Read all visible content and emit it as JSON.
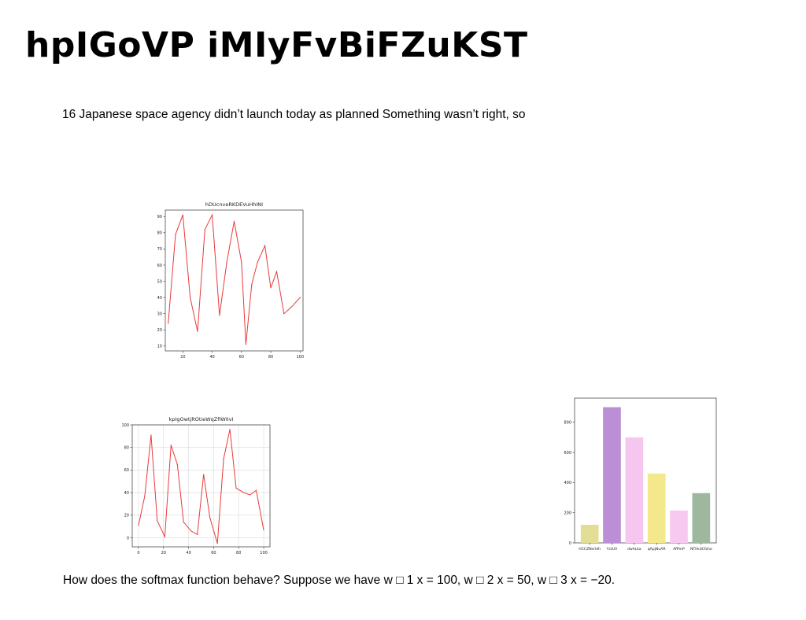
{
  "slide": {
    "title": "hpIGoVP iMIyFvBiFZuKST",
    "subtitle": "16 Japanese space agency didn’t launch today as planned Something wasn’t right, so",
    "bottom_text": "How does the softmax function behave? Suppose we have w □ 1 x = 100, w □ 2 x = 50, w □ 3 x = −20."
  },
  "chart_data": [
    {
      "type": "line",
      "title": "hDUcnveRKDEVuHhINI",
      "x": [
        10,
        15,
        20,
        25,
        30,
        35,
        40,
        45,
        50,
        55,
        60,
        63,
        67,
        71,
        76,
        80,
        84,
        89,
        94,
        100
      ],
      "values": [
        24,
        79,
        91,
        40,
        19,
        82,
        91,
        29,
        62,
        87,
        62,
        11,
        48,
        62,
        72,
        46,
        56,
        30,
        34,
        40
      ],
      "xlim": [
        8,
        102
      ],
      "ylim": [
        7,
        94
      ],
      "xticks": [
        20,
        40,
        60,
        80,
        100
      ],
      "yticks": [
        10,
        20,
        30,
        40,
        50,
        60,
        70,
        80,
        90
      ],
      "grid": false,
      "line_color": "#e83a3a"
    },
    {
      "type": "line",
      "title": "kpIgOwtjROtieWqZfIWIIvI",
      "x": [
        0,
        5,
        10,
        15,
        21,
        26,
        31,
        36,
        42,
        47,
        52,
        57,
        63,
        68,
        73,
        78,
        84,
        89,
        94,
        100
      ],
      "values": [
        11,
        37,
        91,
        15,
        1,
        82,
        65,
        14,
        6,
        3,
        56,
        18,
        -5,
        70,
        96,
        44,
        40,
        38,
        42,
        7
      ],
      "xlim": [
        -5,
        105
      ],
      "ylim": [
        -8,
        100
      ],
      "xticks": [
        0,
        20,
        40,
        60,
        80,
        100
      ],
      "yticks": [
        0,
        20,
        40,
        60,
        80,
        100
      ],
      "grid": true,
      "line_color": "#e83a3a"
    },
    {
      "type": "bar",
      "categories": [
        "HCCZNsrldh",
        "YctUV",
        "dwhLka",
        "qApjNuAR",
        "AfPmP",
        "NThkdCfzho"
      ],
      "values": [
        120,
        900,
        700,
        460,
        215,
        330
      ],
      "colors": [
        "#e3de95",
        "#bb8fd6",
        "#f5c7ef",
        "#f3e88b",
        "#f7c9f0",
        "#9db89f"
      ],
      "ylim": [
        0,
        960
      ],
      "yticks": [
        0,
        200,
        400,
        600,
        800
      ],
      "grid": false
    }
  ]
}
